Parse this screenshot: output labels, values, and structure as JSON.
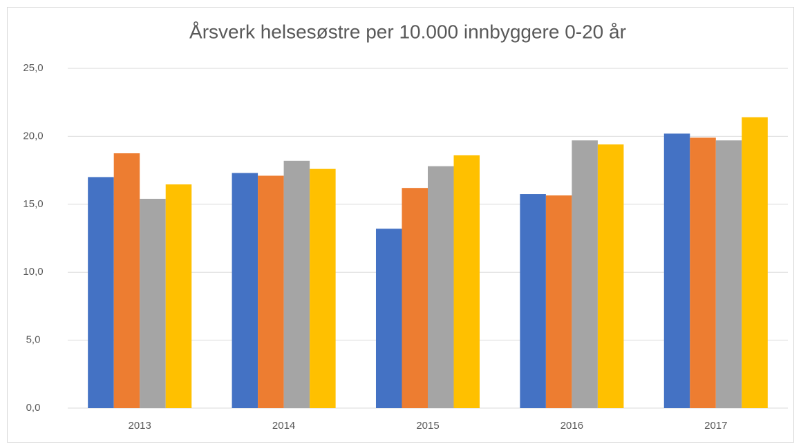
{
  "chart_data": {
    "type": "bar",
    "title": "Årsverk helsesøstre per 10.000 innbyggere 0-20 år",
    "categories": [
      "2013",
      "2014",
      "2015",
      "2016",
      "2017"
    ],
    "series": [
      {
        "color": "#4472c4",
        "values": [
          17.0,
          17.3,
          13.2,
          15.75,
          20.2
        ]
      },
      {
        "color": "#ed7d31",
        "values": [
          18.75,
          17.1,
          16.2,
          15.65,
          19.9
        ]
      },
      {
        "color": "#a5a5a5",
        "values": [
          15.4,
          18.2,
          17.8,
          19.7,
          19.7
        ]
      },
      {
        "color": "#ffc000",
        "values": [
          16.46,
          17.6,
          18.6,
          19.4,
          21.4
        ]
      }
    ],
    "ylim": [
      0,
      25
    ],
    "yticks": [
      {
        "value": 0,
        "label": "0,0"
      },
      {
        "value": 5,
        "label": "5,0"
      },
      {
        "value": 10,
        "label": "10,0"
      },
      {
        "value": 15,
        "label": "15,0"
      },
      {
        "value": 20,
        "label": "20,0"
      },
      {
        "value": 25,
        "label": "25,0"
      }
    ],
    "grid": true
  }
}
